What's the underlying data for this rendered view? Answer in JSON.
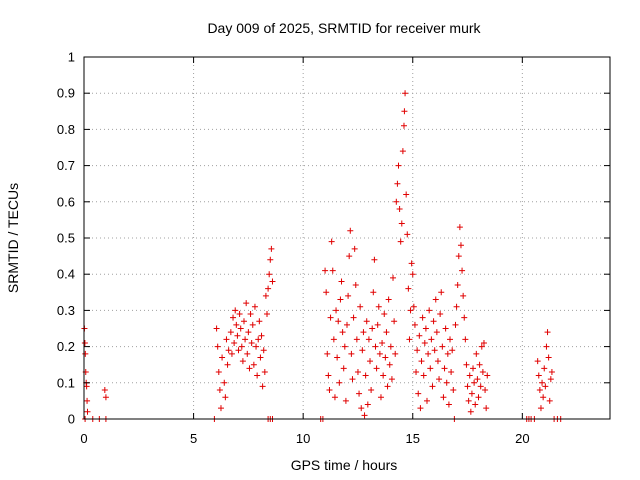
{
  "chart_data": {
    "type": "scatter",
    "title": "Day 009 of 2025, SRMTID for receiver murk",
    "xlabel": "GPS time / hours",
    "ylabel": "SRMTID / TECUs",
    "xlim": [
      0,
      24
    ],
    "ylim": [
      0,
      1
    ],
    "xticks": [
      0,
      5,
      10,
      15,
      20
    ],
    "yticks": [
      0,
      0.1,
      0.2,
      0.3,
      0.4,
      0.5,
      0.6,
      0.7,
      0.8,
      0.9,
      1
    ],
    "xtick_labels": [
      "0",
      "5",
      "10",
      "15",
      "20"
    ],
    "ytick_labels": [
      "0",
      "0.1",
      "0.2",
      "0.3",
      "0.4",
      "0.5",
      "0.6",
      "0.7",
      "0.8",
      "0.9",
      "1"
    ],
    "grid": true,
    "marker": "plus",
    "color": "#e00000",
    "series": [
      {
        "points": [
          [
            0.02,
            0.25
          ],
          [
            0.04,
            0.21
          ],
          [
            0.06,
            0.18
          ],
          [
            0.08,
            0.13
          ],
          [
            0.1,
            0.1
          ],
          [
            0.12,
            0.09
          ],
          [
            0.14,
            0.05
          ],
          [
            0.16,
            0.02
          ],
          [
            0.05,
            0.0
          ],
          [
            0.4,
            0.0
          ],
          [
            0.7,
            0.0
          ],
          [
            0.95,
            0.08
          ],
          [
            1.0,
            0.06
          ],
          [
            1.0,
            0.0
          ],
          [
            5.95,
            0.0
          ],
          [
            6.05,
            0.25
          ],
          [
            6.1,
            0.2
          ],
          [
            6.15,
            0.13
          ],
          [
            6.2,
            0.08
          ],
          [
            6.25,
            0.03
          ],
          [
            6.3,
            0.17
          ],
          [
            6.4,
            0.1
          ],
          [
            6.45,
            0.06
          ],
          [
            6.5,
            0.22
          ],
          [
            6.55,
            0.15
          ],
          [
            6.6,
            0.19
          ],
          [
            6.7,
            0.24
          ],
          [
            6.75,
            0.18
          ],
          [
            6.8,
            0.28
          ],
          [
            6.85,
            0.21
          ],
          [
            6.9,
            0.3
          ],
          [
            6.95,
            0.26
          ],
          [
            7.0,
            0.23
          ],
          [
            7.05,
            0.19
          ],
          [
            7.1,
            0.29
          ],
          [
            7.15,
            0.25
          ],
          [
            7.2,
            0.2
          ],
          [
            7.25,
            0.16
          ],
          [
            7.3,
            0.27
          ],
          [
            7.35,
            0.22
          ],
          [
            7.4,
            0.32
          ],
          [
            7.45,
            0.18
          ],
          [
            7.5,
            0.24
          ],
          [
            7.55,
            0.14
          ],
          [
            7.6,
            0.29
          ],
          [
            7.65,
            0.21
          ],
          [
            7.7,
            0.26
          ],
          [
            7.75,
            0.15
          ],
          [
            7.8,
            0.31
          ],
          [
            7.85,
            0.2
          ],
          [
            7.9,
            0.12
          ],
          [
            7.95,
            0.22
          ],
          [
            8.0,
            0.27
          ],
          [
            8.05,
            0.17
          ],
          [
            8.1,
            0.23
          ],
          [
            8.15,
            0.09
          ],
          [
            8.2,
            0.19
          ],
          [
            8.25,
            0.13
          ],
          [
            8.3,
            0.34
          ],
          [
            8.35,
            0.29
          ],
          [
            8.4,
            0.36
          ],
          [
            8.45,
            0.4
          ],
          [
            8.5,
            0.44
          ],
          [
            8.55,
            0.47
          ],
          [
            8.6,
            0.38
          ],
          [
            8.6,
            0.0
          ],
          [
            8.5,
            0.0
          ],
          [
            8.4,
            0.0
          ],
          [
            10.8,
            0.0
          ],
          [
            10.9,
            0.0
          ],
          [
            11.0,
            0.41
          ],
          [
            11.05,
            0.35
          ],
          [
            11.1,
            0.18
          ],
          [
            11.15,
            0.12
          ],
          [
            11.2,
            0.08
          ],
          [
            11.25,
            0.28
          ],
          [
            11.3,
            0.49
          ],
          [
            11.35,
            0.41
          ],
          [
            11.4,
            0.22
          ],
          [
            11.45,
            0.06
          ],
          [
            11.5,
            0.3
          ],
          [
            11.55,
            0.17
          ],
          [
            11.6,
            0.27
          ],
          [
            11.65,
            0.1
          ],
          [
            11.7,
            0.33
          ],
          [
            11.75,
            0.38
          ],
          [
            11.8,
            0.24
          ],
          [
            11.85,
            0.14
          ],
          [
            11.9,
            0.2
          ],
          [
            11.95,
            0.05
          ],
          [
            12.0,
            0.26
          ],
          [
            12.05,
            0.34
          ],
          [
            12.1,
            0.45
          ],
          [
            12.15,
            0.52
          ],
          [
            12.2,
            0.18
          ],
          [
            12.25,
            0.11
          ],
          [
            12.3,
            0.28
          ],
          [
            12.35,
            0.47
          ],
          [
            12.4,
            0.37
          ],
          [
            12.45,
            0.22
          ],
          [
            12.5,
            0.13
          ],
          [
            12.55,
            0.07
          ],
          [
            12.6,
            0.31
          ],
          [
            12.65,
            0.03
          ],
          [
            12.7,
            0.19
          ],
          [
            12.75,
            0.24
          ],
          [
            12.8,
            0.01
          ],
          [
            12.85,
            0.12
          ],
          [
            12.9,
            0.27
          ],
          [
            12.95,
            0.04
          ],
          [
            13.0,
            0.22
          ],
          [
            13.05,
            0.16
          ],
          [
            13.1,
            0.08
          ],
          [
            13.15,
            0.25
          ],
          [
            13.2,
            0.35
          ],
          [
            13.25,
            0.44
          ],
          [
            13.3,
            0.2
          ],
          [
            13.35,
            0.14
          ],
          [
            13.4,
            0.26
          ],
          [
            13.45,
            0.31
          ],
          [
            13.5,
            0.18
          ],
          [
            13.55,
            0.06
          ],
          [
            13.6,
            0.21
          ],
          [
            13.65,
            0.12
          ],
          [
            13.7,
            0.29
          ],
          [
            13.75,
            0.17
          ],
          [
            13.8,
            0.24
          ],
          [
            13.85,
            0.09
          ],
          [
            13.9,
            0.33
          ],
          [
            13.95,
            0.15
          ],
          [
            14.0,
            0.2
          ],
          [
            14.05,
            0.11
          ],
          [
            14.1,
            0.39
          ],
          [
            14.15,
            0.27
          ],
          [
            14.2,
            0.18
          ],
          [
            14.25,
            0.6
          ],
          [
            14.3,
            0.65
          ],
          [
            14.35,
            0.7
          ],
          [
            14.4,
            0.58
          ],
          [
            14.45,
            0.49
          ],
          [
            14.5,
            0.54
          ],
          [
            14.55,
            0.74
          ],
          [
            14.6,
            0.81
          ],
          [
            14.62,
            0.85
          ],
          [
            14.65,
            0.9
          ],
          [
            14.7,
            0.62
          ],
          [
            14.75,
            0.51
          ],
          [
            14.8,
            0.36
          ],
          [
            14.85,
            0.22
          ],
          [
            14.9,
            0.3
          ],
          [
            14.95,
            0.43
          ],
          [
            15.0,
            0.4
          ],
          [
            15.05,
            0.31
          ],
          [
            15.1,
            0.26
          ],
          [
            15.15,
            0.13
          ],
          [
            15.2,
            0.19
          ],
          [
            15.25,
            0.07
          ],
          [
            15.3,
            0.23
          ],
          [
            15.35,
            0.03
          ],
          [
            15.4,
            0.16
          ],
          [
            15.45,
            0.28
          ],
          [
            15.5,
            0.12
          ],
          [
            15.55,
            0.21
          ],
          [
            15.6,
            0.25
          ],
          [
            15.65,
            0.05
          ],
          [
            15.7,
            0.18
          ],
          [
            15.75,
            0.3
          ],
          [
            15.8,
            0.14
          ],
          [
            15.85,
            0.22
          ],
          [
            15.9,
            0.09
          ],
          [
            15.95,
            0.27
          ],
          [
            16.0,
            0.19
          ],
          [
            16.05,
            0.33
          ],
          [
            16.1,
            0.24
          ],
          [
            16.15,
            0.16
          ],
          [
            16.2,
            0.11
          ],
          [
            16.25,
            0.29
          ],
          [
            16.3,
            0.35
          ],
          [
            16.35,
            0.2
          ],
          [
            16.4,
            0.06
          ],
          [
            16.45,
            0.14
          ],
          [
            16.5,
            0.25
          ],
          [
            16.55,
            0.1
          ],
          [
            16.6,
            0.18
          ],
          [
            16.65,
            0.04
          ],
          [
            16.7,
            0.22
          ],
          [
            16.75,
            0.13
          ],
          [
            16.8,
            0.19
          ],
          [
            16.85,
            0.08
          ],
          [
            16.9,
            0.0
          ],
          [
            16.95,
            0.26
          ],
          [
            17.0,
            0.31
          ],
          [
            17.05,
            0.37
          ],
          [
            17.1,
            0.45
          ],
          [
            17.15,
            0.53
          ],
          [
            17.2,
            0.48
          ],
          [
            17.25,
            0.41
          ],
          [
            17.3,
            0.34
          ],
          [
            17.35,
            0.28
          ],
          [
            17.4,
            0.22
          ],
          [
            17.45,
            0.15
          ],
          [
            17.5,
            0.09
          ],
          [
            17.55,
            0.05
          ],
          [
            17.6,
            0.12
          ],
          [
            17.65,
            0.02
          ],
          [
            17.7,
            0.07
          ],
          [
            17.75,
            0.14
          ],
          [
            17.8,
            0.1
          ],
          [
            17.85,
            0.04
          ],
          [
            17.9,
            0.18
          ],
          [
            17.95,
            0.11
          ],
          [
            18.0,
            0.06
          ],
          [
            18.05,
            0.15
          ],
          [
            18.1,
            0.09
          ],
          [
            18.15,
            0.2
          ],
          [
            18.2,
            0.13
          ],
          [
            18.25,
            0.21
          ],
          [
            18.3,
            0.08
          ],
          [
            18.35,
            0.03
          ],
          [
            18.4,
            0.12
          ],
          [
            20.2,
            0.0
          ],
          [
            20.3,
            0.0
          ],
          [
            20.4,
            0.0
          ],
          [
            20.55,
            0.0
          ],
          [
            20.7,
            0.16
          ],
          [
            20.75,
            0.12
          ],
          [
            20.8,
            0.08
          ],
          [
            20.85,
            0.03
          ],
          [
            20.9,
            0.1
          ],
          [
            20.95,
            0.06
          ],
          [
            21.0,
            0.14
          ],
          [
            21.05,
            0.09
          ],
          [
            21.1,
            0.2
          ],
          [
            21.15,
            0.24
          ],
          [
            21.2,
            0.17
          ],
          [
            21.25,
            0.05
          ],
          [
            21.3,
            0.11
          ],
          [
            21.35,
            0.13
          ],
          [
            21.45,
            0.0
          ],
          [
            21.6,
            0.0
          ],
          [
            21.75,
            0.0
          ]
        ]
      }
    ]
  }
}
